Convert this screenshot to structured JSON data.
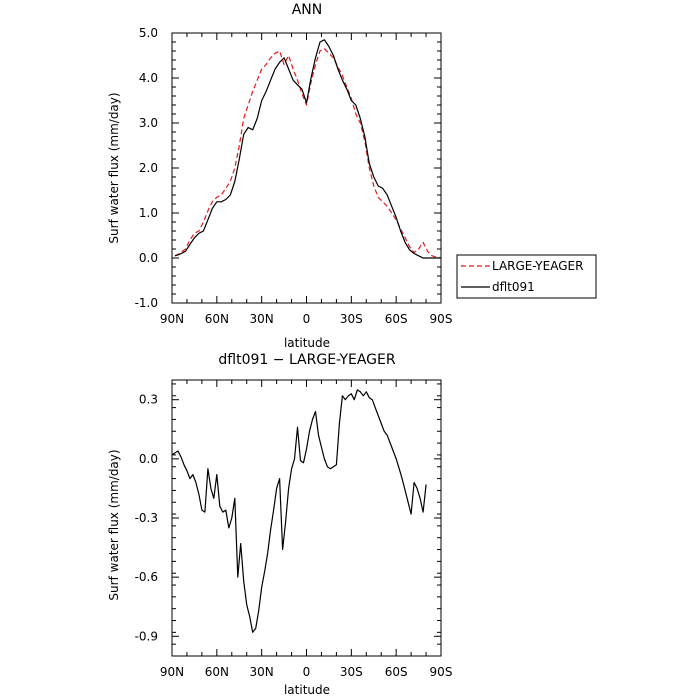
{
  "chart_data": [
    {
      "type": "line",
      "title": "ANN",
      "xlabel": "latitude",
      "ylabel": "Surf water flux (mm/day)",
      "xlim": [
        90,
        -90
      ],
      "ylim": [
        -1.0,
        5.0
      ],
      "x_ticks": [
        90,
        60,
        30,
        0,
        -30,
        -60,
        -90
      ],
      "x_tick_labels": [
        "90N",
        "60N",
        "30N",
        "0",
        "30S",
        "60S",
        "90S"
      ],
      "y_ticks": [
        -1.0,
        0.0,
        1.0,
        2.0,
        3.0,
        4.0,
        5.0
      ],
      "y_tick_labels": [
        "-1.0",
        "0.0",
        "1.0",
        "2.0",
        "3.0",
        "4.0",
        "5.0"
      ],
      "grid": false,
      "legend": "right",
      "series": [
        {
          "name": "LARGE-YEAGER",
          "color": "#e41a1c",
          "dash": "dashed",
          "x": [
            88,
            85,
            81,
            78,
            75,
            72,
            69,
            66,
            63,
            60,
            57,
            54,
            51,
            48,
            45,
            42,
            39,
            36,
            33,
            30,
            27,
            24,
            21,
            18,
            15,
            12,
            9,
            6,
            3,
            0,
            -3,
            -6,
            -9,
            -12,
            -15,
            -18,
            -21,
            -24,
            -27,
            -30,
            -33,
            -36,
            -39,
            -42,
            -45,
            -48,
            -51,
            -54,
            -57,
            -60,
            -63,
            -66,
            -69,
            -72,
            -75,
            -78,
            -81,
            -84,
            -87,
            -90
          ],
          "y": [
            0.05,
            0.1,
            0.2,
            0.4,
            0.55,
            0.6,
            0.8,
            1.05,
            1.25,
            1.35,
            1.4,
            1.55,
            1.7,
            2.0,
            2.5,
            3.1,
            3.4,
            3.7,
            3.95,
            4.2,
            4.3,
            4.45,
            4.55,
            4.6,
            4.3,
            4.5,
            4.2,
            3.95,
            3.65,
            3.4,
            3.9,
            4.3,
            4.6,
            4.65,
            4.55,
            4.45,
            4.25,
            4.05,
            3.8,
            3.55,
            3.2,
            3.0,
            2.6,
            2.0,
            1.6,
            1.35,
            1.25,
            1.15,
            1.0,
            0.85,
            0.65,
            0.45,
            0.25,
            0.12,
            0.2,
            0.35,
            0.15,
            0.05,
            0.02,
            0.0
          ]
        },
        {
          "name": "dflt091",
          "color": "#000000",
          "dash": "solid",
          "x": [
            88,
            85,
            81,
            78,
            75,
            72,
            69,
            66,
            63,
            60,
            57,
            54,
            51,
            48,
            45,
            42,
            39,
            36,
            33,
            30,
            27,
            24,
            21,
            18,
            15,
            12,
            9,
            6,
            3,
            0,
            -3,
            -6,
            -9,
            -12,
            -15,
            -18,
            -21,
            -24,
            -27,
            -30,
            -33,
            -36,
            -39,
            -42,
            -45,
            -48,
            -51,
            -54,
            -57,
            -60,
            -63,
            -66,
            -69,
            -72,
            -75,
            -78,
            -81,
            -84,
            -87,
            -90
          ],
          "y": [
            0.05,
            0.08,
            0.15,
            0.3,
            0.45,
            0.55,
            0.6,
            0.85,
            1.1,
            1.25,
            1.25,
            1.3,
            1.4,
            1.7,
            2.2,
            2.75,
            2.9,
            2.85,
            3.1,
            3.5,
            3.7,
            3.95,
            4.2,
            4.35,
            4.45,
            4.2,
            3.95,
            3.85,
            3.75,
            3.45,
            4.0,
            4.45,
            4.8,
            4.85,
            4.7,
            4.5,
            4.2,
            3.95,
            3.75,
            3.5,
            3.4,
            3.1,
            2.7,
            2.1,
            1.8,
            1.6,
            1.55,
            1.4,
            1.15,
            0.9,
            0.6,
            0.35,
            0.18,
            0.1,
            0.05,
            0.0,
            0.0,
            0.0,
            0.0,
            0.0
          ]
        }
      ]
    },
    {
      "type": "line",
      "title": "dflt091 − LARGE-YEAGER",
      "xlabel": "latitude",
      "ylabel": "Surf water flux (mm/day)",
      "xlim": [
        90,
        -90
      ],
      "ylim": [
        -1.0,
        0.4
      ],
      "x_ticks": [
        90,
        60,
        30,
        0,
        -30,
        -60,
        -90
      ],
      "x_tick_labels": [
        "90N",
        "60N",
        "30N",
        "0",
        "30S",
        "60S",
        "90S"
      ],
      "y_ticks": [
        -0.9,
        -0.6,
        -0.3,
        0.0,
        0.3
      ],
      "y_tick_labels": [
        "-0.9",
        "-0.6",
        "-0.3",
        "0.0",
        "0.3"
      ],
      "grid": false,
      "series": [
        {
          "color": "#000000",
          "dash": "solid",
          "x": [
            90,
            88,
            86,
            84,
            82,
            80,
            78,
            76,
            74,
            72,
            70,
            68,
            66,
            64,
            62,
            60,
            58,
            56,
            54,
            52,
            50,
            48,
            46,
            44,
            42,
            40,
            38,
            36,
            34,
            32,
            30,
            28,
            26,
            24,
            22,
            20,
            18,
            16,
            14,
            12,
            10,
            8,
            6,
            4,
            2,
            0,
            -2,
            -4,
            -6,
            -8,
            -10,
            -12,
            -14,
            -16,
            -18,
            -20,
            -22,
            -24,
            -26,
            -28,
            -30,
            -32,
            -34,
            -36,
            -38,
            -40,
            -42,
            -44,
            -46,
            -48,
            -50,
            -52,
            -54,
            -56,
            -58,
            -60,
            -62,
            -64,
            -66,
            -68,
            -70,
            -72,
            -74,
            -76,
            -78,
            -80
          ],
          "y": [
            0.02,
            0.03,
            0.04,
            0.01,
            -0.03,
            -0.06,
            -0.1,
            -0.08,
            -0.12,
            -0.18,
            -0.26,
            -0.27,
            -0.05,
            -0.15,
            -0.2,
            -0.08,
            -0.24,
            -0.27,
            -0.26,
            -0.35,
            -0.3,
            -0.2,
            -0.6,
            -0.43,
            -0.62,
            -0.74,
            -0.8,
            -0.88,
            -0.86,
            -0.77,
            -0.65,
            -0.57,
            -0.48,
            -0.36,
            -0.26,
            -0.15,
            -0.1,
            -0.46,
            -0.32,
            -0.15,
            -0.05,
            0.0,
            0.16,
            -0.01,
            -0.02,
            0.05,
            0.14,
            0.2,
            0.24,
            0.12,
            0.06,
            0.0,
            -0.04,
            -0.05,
            -0.04,
            -0.03,
            0.18,
            0.32,
            0.3,
            0.32,
            0.33,
            0.3,
            0.35,
            0.34,
            0.32,
            0.34,
            0.31,
            0.3,
            0.26,
            0.22,
            0.18,
            0.14,
            0.12,
            0.08,
            0.04,
            0.0,
            -0.05,
            -0.1,
            -0.16,
            -0.22,
            -0.28,
            -0.12,
            -0.15,
            -0.2,
            -0.27,
            -0.13
          ]
        }
      ]
    }
  ]
}
